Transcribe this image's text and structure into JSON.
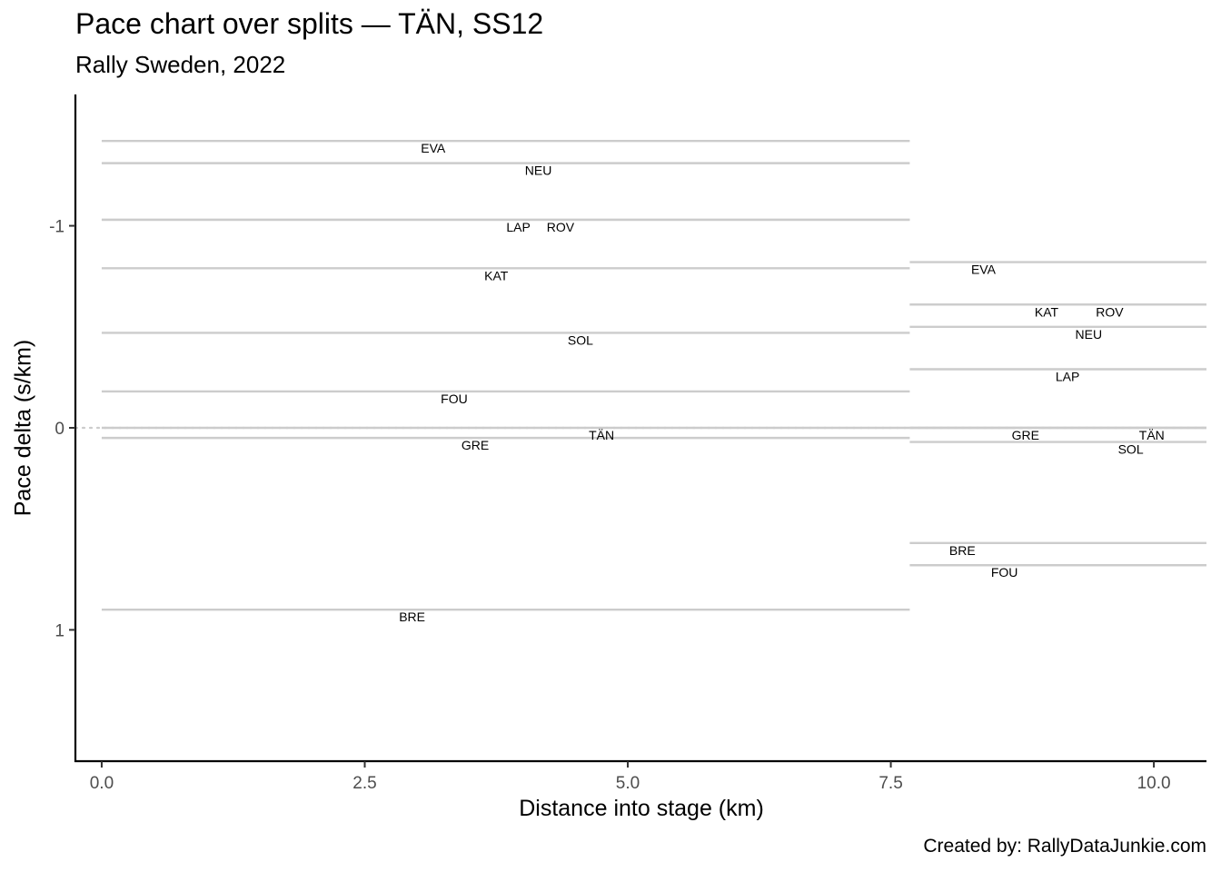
{
  "chart_data": {
    "type": "line",
    "title": "Pace chart over splits — TÄN, SS12",
    "subtitle": "Rally Sweden, 2022",
    "xlabel": "Distance into stage (km)",
    "ylabel": "Pace delta (s/km)",
    "caption": "Created by: RallyDataJunkie.com",
    "xlim": [
      -0.25,
      10.5
    ],
    "ylim": [
      1.65,
      -1.65
    ],
    "x_reversed": false,
    "y_reversed": true,
    "grid": false,
    "legend": "none",
    "x_ticks": [
      {
        "value": 0,
        "label": "0.0"
      },
      {
        "value": 2.5,
        "label": "2.5"
      },
      {
        "value": 5,
        "label": "5.0"
      },
      {
        "value": 7.5,
        "label": "7.5"
      },
      {
        "value": 10,
        "label": "10.0"
      }
    ],
    "y_ticks": [
      {
        "value": -1,
        "label": "-1"
      },
      {
        "value": 0,
        "label": "0"
      },
      {
        "value": 1,
        "label": "1"
      }
    ],
    "reference_line": {
      "y": 0,
      "style": "dotted",
      "color": "#cccccc"
    },
    "segment_color": "#cccccc",
    "splits": [
      {
        "x_start": 0,
        "x_end": 7.68,
        "drivers": [
          {
            "name": "EVA",
            "pace_delta": -1.42,
            "label_x": 3.15
          },
          {
            "name": "NEU",
            "pace_delta": -1.31,
            "label_x": 4.15
          },
          {
            "name": "LAP",
            "pace_delta": -1.03,
            "label_x": 3.96
          },
          {
            "name": "ROV",
            "pace_delta": -1.03,
            "label_x": 4.36
          },
          {
            "name": "KAT",
            "pace_delta": -0.79,
            "label_x": 3.75
          },
          {
            "name": "SOL",
            "pace_delta": -0.47,
            "label_x": 4.55
          },
          {
            "name": "FOU",
            "pace_delta": -0.18,
            "label_x": 3.35
          },
          {
            "name": "TÄN",
            "pace_delta": 0.0,
            "label_x": 4.75
          },
          {
            "name": "GRE",
            "pace_delta": 0.05,
            "label_x": 3.55
          },
          {
            "name": "BRE",
            "pace_delta": 0.9,
            "label_x": 2.95
          }
        ]
      },
      {
        "x_start": 7.68,
        "x_end": 10.5,
        "drivers": [
          {
            "name": "EVA",
            "pace_delta": -0.82,
            "label_x": 8.38
          },
          {
            "name": "KAT",
            "pace_delta": -0.61,
            "label_x": 8.98
          },
          {
            "name": "ROV",
            "pace_delta": -0.61,
            "label_x": 9.58
          },
          {
            "name": "NEU",
            "pace_delta": -0.5,
            "label_x": 9.38
          },
          {
            "name": "LAP",
            "pace_delta": -0.29,
            "label_x": 9.18
          },
          {
            "name": "GRE",
            "pace_delta": 0.0,
            "label_x": 8.78
          },
          {
            "name": "TÄN",
            "pace_delta": 0.0,
            "label_x": 9.98
          },
          {
            "name": "SOL",
            "pace_delta": 0.07,
            "label_x": 9.78
          },
          {
            "name": "BRE",
            "pace_delta": 0.57,
            "label_x": 8.18
          },
          {
            "name": "FOU",
            "pace_delta": 0.68,
            "label_x": 8.58
          }
        ]
      }
    ]
  }
}
